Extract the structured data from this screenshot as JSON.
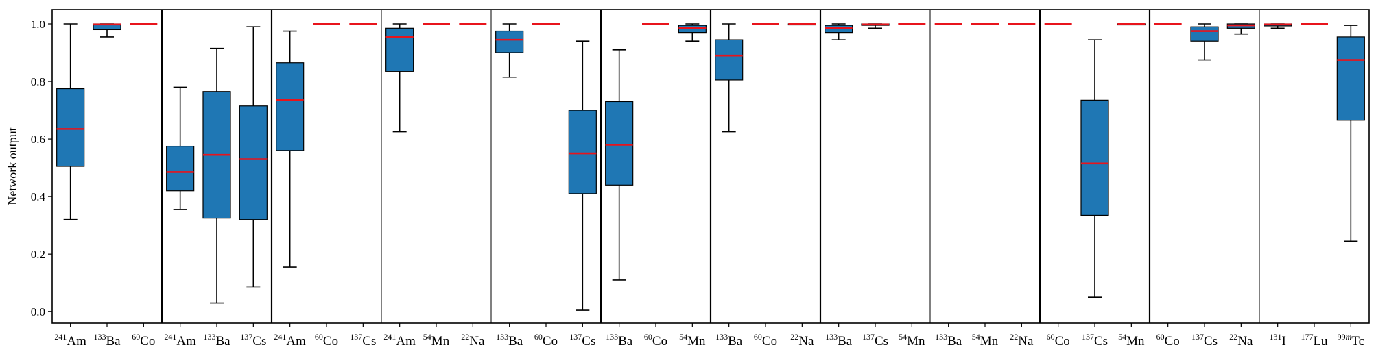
{
  "chart_data": {
    "type": "box",
    "ylabel": "Network output",
    "ylim": [
      -0.04,
      1.05
    ],
    "yticks": [
      0.0,
      0.2,
      0.4,
      0.6,
      0.8,
      1.0
    ],
    "grid": false,
    "box_color": "#1f77b4",
    "median_color": "#e8141c",
    "groups": [
      {
        "boxes": [
          {
            "iso": "241",
            "el": "Am",
            "whislo": 0.32,
            "q1": 0.505,
            "med": 0.635,
            "q3": 0.775,
            "whishi": 1.0
          },
          {
            "iso": "133",
            "el": "Ba",
            "whislo": 0.955,
            "q1": 0.98,
            "med": 0.998,
            "q3": 1.0,
            "whishi": 1.0
          },
          {
            "iso": "60",
            "el": "Co",
            "whislo": 1.0,
            "q1": 1.0,
            "med": 1.0,
            "q3": 1.0,
            "whishi": 1.0
          }
        ]
      },
      {
        "boxes": [
          {
            "iso": "241",
            "el": "Am",
            "whislo": 0.355,
            "q1": 0.42,
            "med": 0.485,
            "q3": 0.575,
            "whishi": 0.78
          },
          {
            "iso": "133",
            "el": "Ba",
            "whislo": 0.03,
            "q1": 0.325,
            "med": 0.545,
            "q3": 0.765,
            "whishi": 0.915
          },
          {
            "iso": "137",
            "el": "Cs",
            "whislo": 0.085,
            "q1": 0.32,
            "med": 0.53,
            "q3": 0.715,
            "whishi": 0.99
          }
        ]
      },
      {
        "boxes": [
          {
            "iso": "241",
            "el": "Am",
            "whislo": 0.155,
            "q1": 0.56,
            "med": 0.735,
            "q3": 0.865,
            "whishi": 0.975
          },
          {
            "iso": "60",
            "el": "Co",
            "whislo": 1.0,
            "q1": 1.0,
            "med": 1.0,
            "q3": 1.0,
            "whishi": 1.0
          },
          {
            "iso": "137",
            "el": "Cs",
            "whislo": 1.0,
            "q1": 1.0,
            "med": 1.0,
            "q3": 1.0,
            "whishi": 1.0
          }
        ]
      },
      {
        "boxes": [
          {
            "iso": "241",
            "el": "Am",
            "whislo": 0.625,
            "q1": 0.835,
            "med": 0.955,
            "q3": 0.985,
            "whishi": 1.0
          },
          {
            "iso": "54",
            "el": "Mn",
            "whislo": 1.0,
            "q1": 1.0,
            "med": 1.0,
            "q3": 1.0,
            "whishi": 1.0
          },
          {
            "iso": "22",
            "el": "Na",
            "whislo": 1.0,
            "q1": 1.0,
            "med": 1.0,
            "q3": 1.0,
            "whishi": 1.0
          }
        ]
      },
      {
        "boxes": [
          {
            "iso": "133",
            "el": "Ba",
            "whislo": 0.815,
            "q1": 0.9,
            "med": 0.945,
            "q3": 0.975,
            "whishi": 1.0
          },
          {
            "iso": "60",
            "el": "Co",
            "whislo": 1.0,
            "q1": 1.0,
            "med": 1.0,
            "q3": 1.0,
            "whishi": 1.0
          },
          {
            "iso": "137",
            "el": "Cs",
            "whislo": 0.005,
            "q1": 0.41,
            "med": 0.55,
            "q3": 0.7,
            "whishi": 0.94
          }
        ]
      },
      {
        "boxes": [
          {
            "iso": "133",
            "el": "Ba",
            "whislo": 0.11,
            "q1": 0.44,
            "med": 0.58,
            "q3": 0.73,
            "whishi": 0.91
          },
          {
            "iso": "60",
            "el": "Co",
            "whislo": 1.0,
            "q1": 1.0,
            "med": 1.0,
            "q3": 1.0,
            "whishi": 1.0
          },
          {
            "iso": "54",
            "el": "Mn",
            "whislo": 0.94,
            "q1": 0.97,
            "med": 0.985,
            "q3": 0.995,
            "whishi": 1.0
          }
        ]
      },
      {
        "boxes": [
          {
            "iso": "133",
            "el": "Ba",
            "whislo": 0.625,
            "q1": 0.805,
            "med": 0.89,
            "q3": 0.945,
            "whishi": 1.0
          },
          {
            "iso": "60",
            "el": "Co",
            "whislo": 1.0,
            "q1": 1.0,
            "med": 1.0,
            "q3": 1.0,
            "whishi": 1.0
          },
          {
            "iso": "22",
            "el": "Na",
            "whislo": 0.998,
            "q1": 0.999,
            "med": 1.0,
            "q3": 1.0,
            "whishi": 1.0
          }
        ]
      },
      {
        "boxes": [
          {
            "iso": "133",
            "el": "Ba",
            "whislo": 0.945,
            "q1": 0.97,
            "med": 0.985,
            "q3": 0.995,
            "whishi": 1.0
          },
          {
            "iso": "137",
            "el": "Cs",
            "whislo": 0.985,
            "q1": 0.995,
            "med": 0.998,
            "q3": 1.0,
            "whishi": 1.0
          },
          {
            "iso": "54",
            "el": "Mn",
            "whislo": 1.0,
            "q1": 1.0,
            "med": 1.0,
            "q3": 1.0,
            "whishi": 1.0
          }
        ]
      },
      {
        "boxes": [
          {
            "iso": "133",
            "el": "Ba",
            "whislo": 1.0,
            "q1": 1.0,
            "med": 1.0,
            "q3": 1.0,
            "whishi": 1.0
          },
          {
            "iso": "54",
            "el": "Mn",
            "whislo": 1.0,
            "q1": 1.0,
            "med": 1.0,
            "q3": 1.0,
            "whishi": 1.0
          },
          {
            "iso": "22",
            "el": "Na",
            "whislo": 1.0,
            "q1": 1.0,
            "med": 1.0,
            "q3": 1.0,
            "whishi": 1.0
          }
        ]
      },
      {
        "boxes": [
          {
            "iso": "60",
            "el": "Co",
            "whislo": 1.0,
            "q1": 1.0,
            "med": 1.0,
            "q3": 1.0,
            "whishi": 1.0
          },
          {
            "iso": "137",
            "el": "Cs",
            "whislo": 0.05,
            "q1": 0.335,
            "med": 0.515,
            "q3": 0.735,
            "whishi": 0.945
          },
          {
            "iso": "54",
            "el": "Mn",
            "whislo": 0.998,
            "q1": 0.999,
            "med": 1.0,
            "q3": 1.0,
            "whishi": 1.0
          }
        ]
      },
      {
        "boxes": [
          {
            "iso": "60",
            "el": "Co",
            "whislo": 1.0,
            "q1": 1.0,
            "med": 1.0,
            "q3": 1.0,
            "whishi": 1.0
          },
          {
            "iso": "137",
            "el": "Cs",
            "whislo": 0.875,
            "q1": 0.94,
            "med": 0.975,
            "q3": 0.99,
            "whishi": 1.0
          },
          {
            "iso": "22",
            "el": "Na",
            "whislo": 0.965,
            "q1": 0.985,
            "med": 0.995,
            "q3": 1.0,
            "whishi": 1.0
          }
        ]
      },
      {
        "boxes": [
          {
            "iso": "131",
            "el": "I",
            "whislo": 0.985,
            "q1": 0.993,
            "med": 0.998,
            "q3": 1.0,
            "whishi": 1.0
          },
          {
            "iso": "177",
            "el": "Lu",
            "whislo": 1.0,
            "q1": 1.0,
            "med": 1.0,
            "q3": 1.0,
            "whishi": 1.0
          },
          {
            "iso": "99m",
            "el": "Tc",
            "whislo": 0.245,
            "q1": 0.665,
            "med": 0.875,
            "q3": 0.955,
            "whishi": 0.995
          }
        ]
      }
    ]
  }
}
